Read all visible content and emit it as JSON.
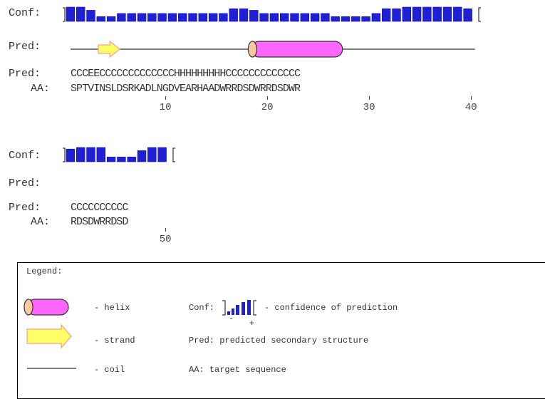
{
  "block1": {
    "conf_label": "Conf:",
    "pred_label": "Pred:",
    "pred_seq_label": "Pred:",
    "aa_label": "AA:",
    "pred_seq": "CCCEECCCCCCCCCCCCCHHHHHHHHHCCCCCCCCCCCCC",
    "aa_seq": "SPTVINSLDSRKADLNGDVEARHAADWRRDSDWRRDSDWR",
    "confidence": [
      9,
      9,
      7,
      3,
      3,
      5,
      5,
      5,
      5,
      5,
      5,
      5,
      5,
      5,
      5,
      5,
      8,
      8,
      7,
      5,
      5,
      5,
      5,
      5,
      5,
      5,
      3,
      3,
      3,
      3,
      5,
      8,
      8,
      9,
      9,
      9,
      9,
      9,
      9,
      8
    ],
    "ticks": [
      "10",
      "20",
      "30",
      "40"
    ]
  },
  "block2": {
    "conf_label": "Conf:",
    "pred_label": "Pred:",
    "pred_seq_label": "Pred:",
    "aa_label": "AA:",
    "pred_seq": "CCCCCCCCCC",
    "aa_seq": "RDSDWRRDSD",
    "confidence": [
      8,
      9,
      9,
      9,
      3,
      3,
      3,
      7,
      9,
      9
    ],
    "ticks": [
      "50"
    ]
  },
  "legend": {
    "title": "Legend:",
    "helix": "- helix",
    "strand": "- strand",
    "coil": "- coil",
    "conf_label": "Conf:",
    "conf_desc": "- confidence of prediction",
    "minus": "-",
    "plus": "+",
    "pred_desc": "Pred: predicted secondary structure",
    "aa_desc": "AA: target sequence"
  },
  "colors": {
    "bar": "#1f1fd6",
    "helix": "#ff66ff",
    "strand": "#ffff66",
    "outline": "#333333"
  }
}
